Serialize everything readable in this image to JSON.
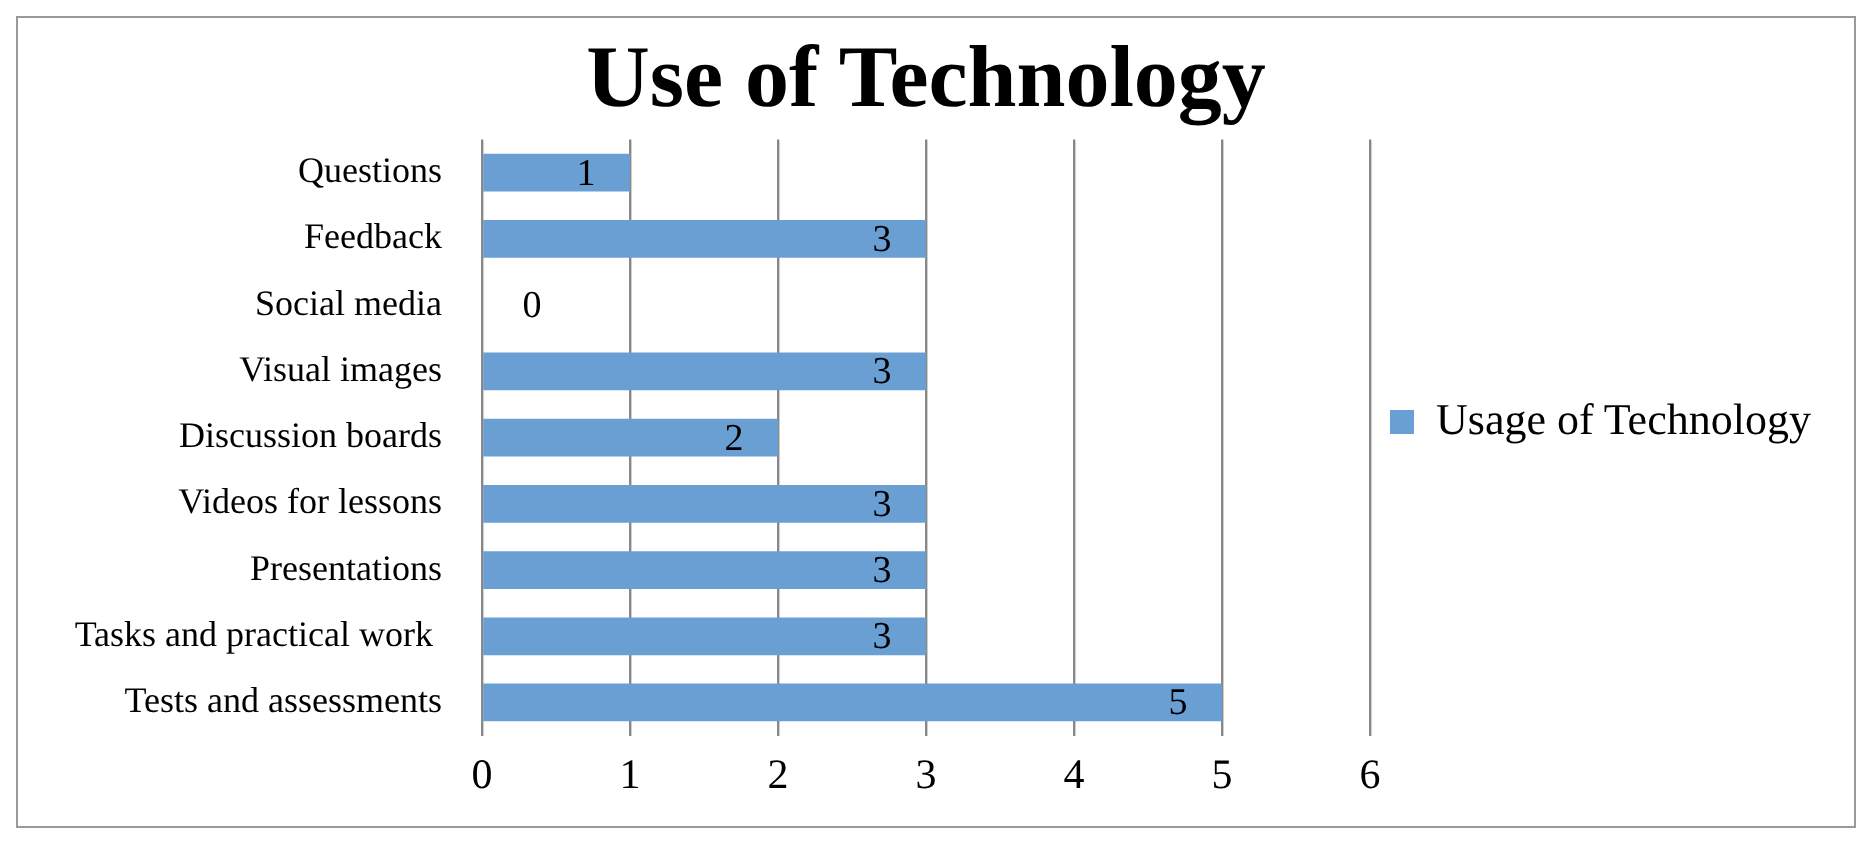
{
  "chart_data": {
    "type": "bar",
    "orientation": "horizontal",
    "title": "Use of Technology",
    "categories": [
      "Questions",
      "Feedback",
      "Social media",
      "Visual images",
      "Discussion boards",
      "Videos for lessons",
      "Presentations",
      "Tasks and practical work ",
      "Tests and assessments"
    ],
    "series": [
      {
        "name": "Usage of Technology",
        "color": "#6a9fd4",
        "values": [
          1,
          3,
          0,
          3,
          2,
          3,
          3,
          3,
          5
        ]
      }
    ],
    "xlim": [
      0,
      6
    ],
    "xticks": [
      0,
      1,
      2,
      3,
      4,
      5,
      6
    ],
    "grid": "x",
    "legend": "right",
    "data_labels": true
  }
}
